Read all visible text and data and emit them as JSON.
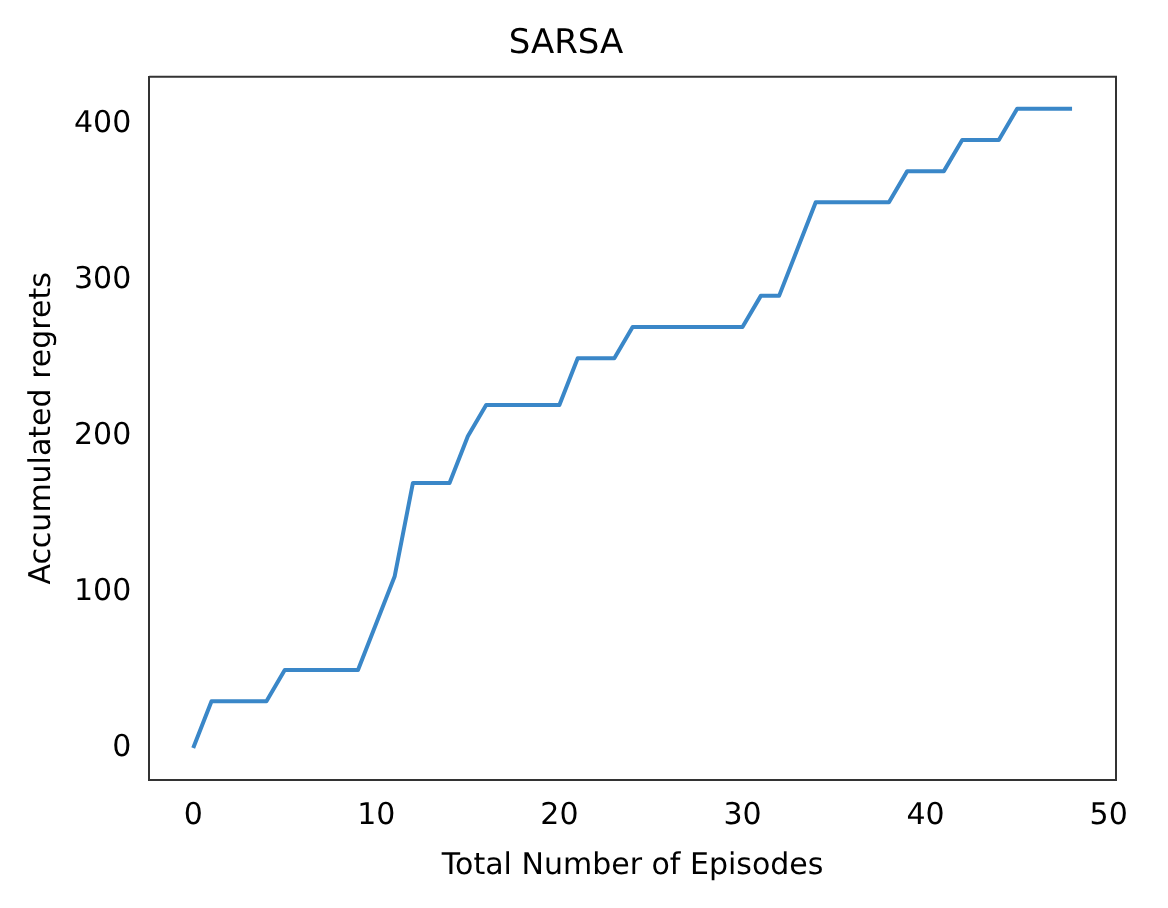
{
  "chart_data": {
    "type": "line",
    "title": "SARSA",
    "xlabel": "Total Number of Episodes",
    "ylabel": "Accumulated regrets",
    "x": [
      0,
      1,
      2,
      3,
      4,
      5,
      6,
      7,
      8,
      9,
      10,
      11,
      12,
      13,
      14,
      15,
      16,
      17,
      18,
      19,
      20,
      21,
      22,
      23,
      24,
      25,
      26,
      27,
      28,
      29,
      30,
      31,
      32,
      33,
      34,
      35,
      36,
      37,
      38,
      39,
      40,
      41,
      42,
      43,
      44,
      45,
      46,
      47,
      48
    ],
    "series": [
      {
        "color": "#3a87c8",
        "values": [
          0,
          30,
          30,
          30,
          30,
          50,
          50,
          50,
          50,
          50,
          80,
          110,
          170,
          170,
          170,
          200,
          220,
          220,
          220,
          220,
          220,
          250,
          250,
          250,
          270,
          270,
          270,
          270,
          270,
          270,
          270,
          290,
          290,
          320,
          350,
          350,
          350,
          350,
          350,
          370,
          370,
          370,
          390,
          390,
          390,
          410,
          410,
          410,
          410
        ]
      }
    ],
    "xlim": [
      -2.4,
      50.4
    ],
    "ylim": [
      -20.5,
      430.5
    ],
    "xticks": [
      0,
      10,
      20,
      30,
      40,
      50
    ],
    "yticks": [
      0,
      100,
      200,
      300,
      400
    ],
    "grid": false,
    "legend": false,
    "marker": "none",
    "line_style": "solid"
  }
}
